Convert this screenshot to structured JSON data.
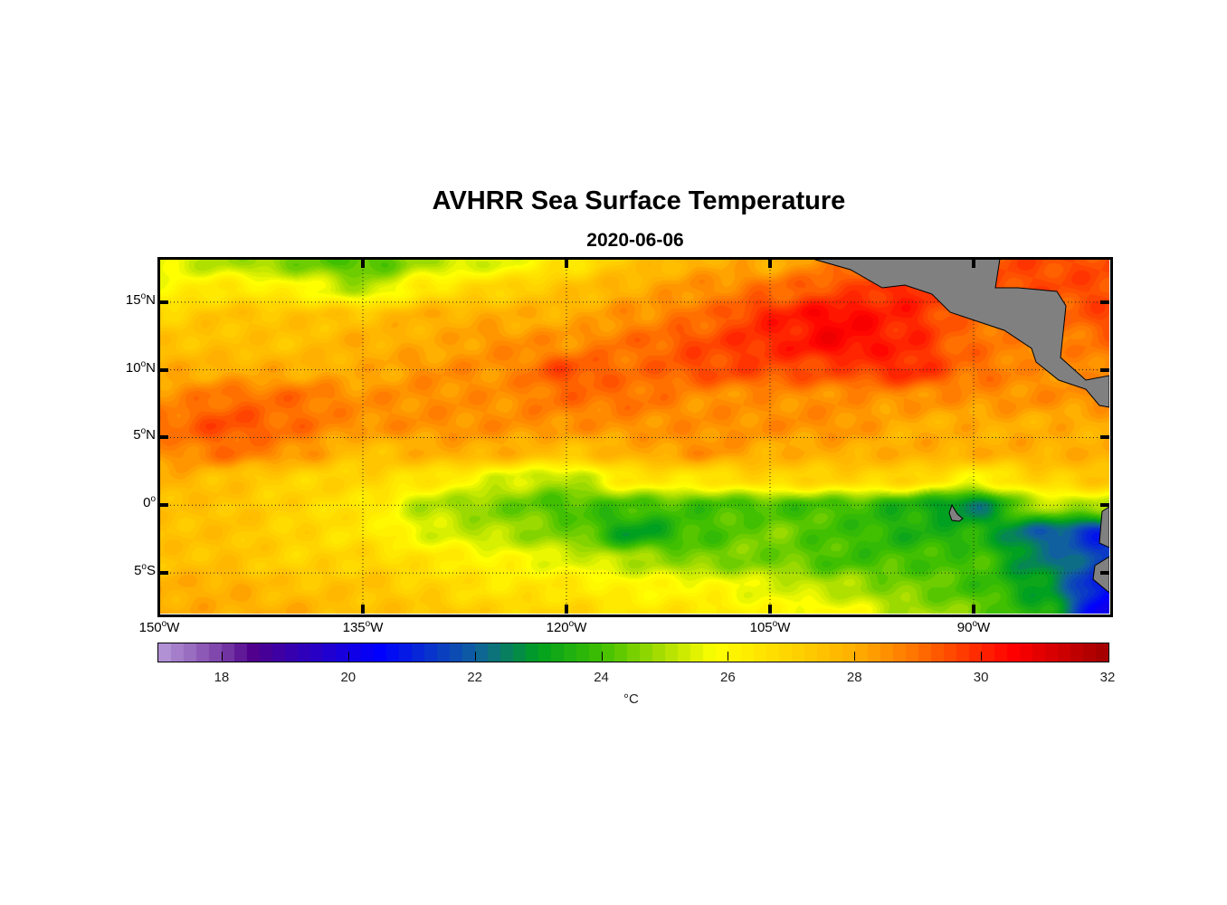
{
  "title": "AVHRR Sea Surface Temperature",
  "subtitle": "2020-06-06",
  "colors": {
    "land": "#808080",
    "frame": "#000000"
  },
  "chart_data": {
    "type": "heatmap",
    "title": "AVHRR Sea Surface Temperature",
    "subtitle": "2020-06-06",
    "x_axis": {
      "range": [
        -150,
        -80
      ],
      "ticks": [
        {
          "value": -150,
          "num": "150",
          "hemi": "W"
        },
        {
          "value": -135,
          "num": "135",
          "hemi": "W"
        },
        {
          "value": -120,
          "num": "120",
          "hemi": "W"
        },
        {
          "value": -105,
          "num": "105",
          "hemi": "W"
        },
        {
          "value": -90,
          "num": "90",
          "hemi": "W"
        }
      ]
    },
    "y_axis": {
      "range": [
        -8,
        18.2
      ],
      "ticks": [
        {
          "value": 15,
          "num": "15",
          "hemi": "N"
        },
        {
          "value": 10,
          "num": "10",
          "hemi": "N"
        },
        {
          "value": 5,
          "num": "5",
          "hemi": "N"
        },
        {
          "value": 0,
          "num": "0",
          "hemi": ""
        },
        {
          "value": -5,
          "num": "5",
          "hemi": "S"
        }
      ]
    },
    "grid": true,
    "lons": [
      -150,
      -145,
      -140,
      -135,
      -130,
      -125,
      -120,
      -115,
      -110,
      -105,
      -100,
      -95,
      -90,
      -85,
      -80
    ],
    "lats": [
      18,
      16,
      14,
      12,
      10,
      8,
      6,
      4,
      2,
      0,
      -2,
      -4,
      -6,
      -8
    ],
    "values": [
      [
        25.5,
        25,
        24.5,
        24,
        25,
        25.5,
        26.5,
        27.5,
        28,
        28,
        null,
        null,
        null,
        29.5,
        29.5
      ],
      [
        26,
        26.5,
        26,
        25,
        26.5,
        27,
        27.5,
        28,
        28.5,
        29,
        29.5,
        30,
        null,
        null,
        29.5
      ],
      [
        27,
        27.5,
        27.5,
        27.5,
        28,
        28,
        28,
        28.5,
        29,
        30,
        30.5,
        30,
        29,
        null,
        29.5
      ],
      [
        27.5,
        27.5,
        27.5,
        28,
        28,
        28.5,
        28.5,
        29,
        29.5,
        30,
        30.5,
        30,
        29,
        28.5,
        29
      ],
      [
        28,
        28,
        28,
        28,
        28.5,
        28.5,
        29.5,
        29,
        29.5,
        29.5,
        29.5,
        30,
        29,
        28.5,
        null
      ],
      [
        28.5,
        29,
        29,
        28.5,
        28.5,
        28.5,
        29,
        29,
        28.5,
        28.5,
        28.5,
        28.5,
        28.5,
        28.5,
        28.5
      ],
      [
        29,
        29.5,
        29,
        28.5,
        28.5,
        28.5,
        28.5,
        28.5,
        28.5,
        28.5,
        28.5,
        28,
        28,
        28,
        28
      ],
      [
        28.5,
        29,
        28.5,
        27.5,
        28,
        28,
        27.5,
        28,
        28.5,
        28,
        28,
        28,
        28,
        28,
        28
      ],
      [
        28,
        27.5,
        27,
        27,
        26.5,
        25.5,
        25,
        26.5,
        26.5,
        27,
        27,
        27,
        26,
        27,
        27.5
      ],
      [
        27.5,
        27.5,
        27,
        26.5,
        25,
        24.5,
        24,
        24,
        24,
        24,
        24,
        23.5,
        22.5,
        25,
        25
      ],
      [
        27.5,
        27.5,
        27,
        26.5,
        25.5,
        25,
        24.5,
        23,
        24,
        24.5,
        24,
        23.5,
        23.5,
        22,
        21
      ],
      [
        27.5,
        27.5,
        27,
        27,
        26.5,
        26,
        25.5,
        25,
        24.5,
        24.5,
        24,
        24,
        24,
        22.5,
        21.5
      ],
      [
        28,
        28,
        27.5,
        27.5,
        27,
        26.5,
        26.5,
        26,
        26,
        25.5,
        25,
        24.5,
        24,
        23,
        20.5
      ],
      [
        28,
        28,
        28,
        27.5,
        27.5,
        27,
        27,
        26.5,
        26.5,
        26,
        26,
        25,
        24.5,
        23.5,
        20
      ]
    ],
    "colorbar": {
      "range": [
        17,
        32
      ],
      "ticks": [
        "18",
        "20",
        "22",
        "24",
        "26",
        "28",
        "30",
        "32"
      ],
      "unit": "°C",
      "colormap": [
        [
          17,
          "#b89ad8"
        ],
        [
          18,
          "#7a40a8"
        ],
        [
          18.5,
          "#50008c"
        ],
        [
          20.5,
          "#0000ff"
        ],
        [
          22,
          "#1060a0"
        ],
        [
          23,
          "#00a020"
        ],
        [
          24,
          "#40c000"
        ],
        [
          25,
          "#b0e000"
        ],
        [
          25.8,
          "#ffff00"
        ],
        [
          28,
          "#ffb000"
        ],
        [
          29,
          "#ff7000"
        ],
        [
          30.5,
          "#ff0000"
        ],
        [
          32,
          "#a00000"
        ]
      ]
    }
  }
}
